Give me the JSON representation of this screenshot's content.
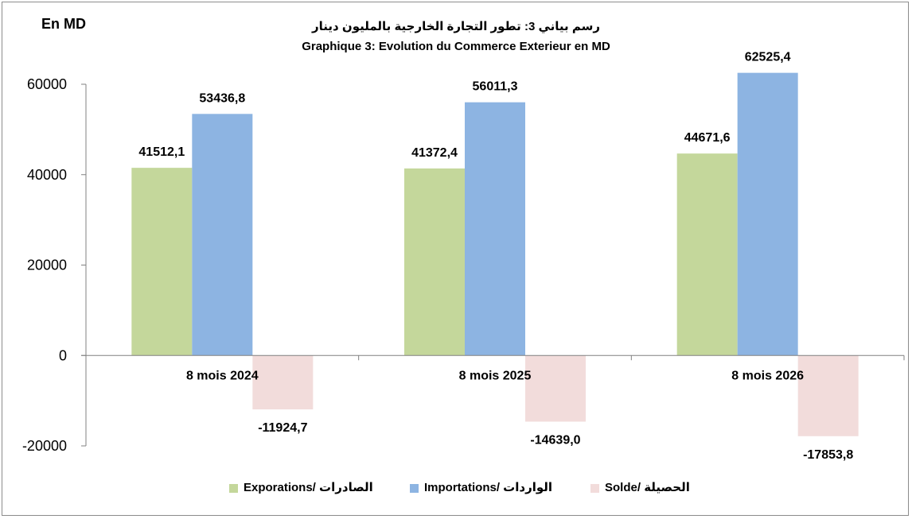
{
  "chart_data": {
    "type": "bar",
    "unit_label": "En MD",
    "title": "رسم بياني 3: تطور التجارة الخارجية بالمليون دينار",
    "subtitle": "Graphique 3: Evolution du Commerce Exterieur en MD",
    "categories": [
      "8 mois 2024",
      "8 mois 2025",
      "8 mois 2026"
    ],
    "series": [
      {
        "name": "Exporations/  الصادرات",
        "color": "#c4d79b",
        "values": [
          41512.1,
          41372.4,
          44671.6
        ],
        "labels": [
          "41512,1",
          "41372,4",
          "44671,6"
        ]
      },
      {
        "name": "Importations/ الواردات",
        "color": "#8db4e2",
        "values": [
          53436.8,
          56011.3,
          62525.4
        ],
        "labels": [
          "53436,8",
          "56011,3",
          "62525,4"
        ]
      },
      {
        "name": "Solde/ الحصيلة",
        "color": "#f2dcdb",
        "values": [
          -11924.7,
          -14639.0,
          -17853.8
        ],
        "labels": [
          "-11924,7",
          "-14639,0",
          "-17853,8"
        ]
      }
    ],
    "yticks": [
      60000,
      40000,
      20000,
      0,
      -20000
    ],
    "ylim": [
      -20000,
      60000
    ],
    "grid": false,
    "legend_position": "bottom"
  }
}
